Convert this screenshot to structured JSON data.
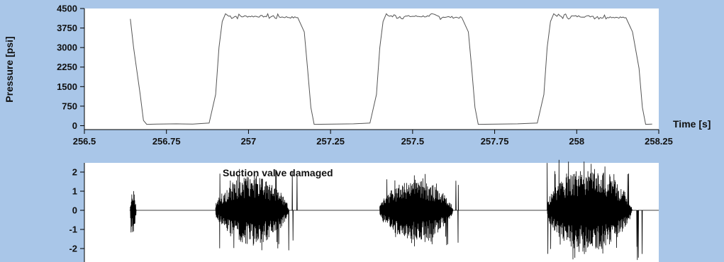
{
  "chart_data": [
    {
      "type": "line",
      "panel": "pressure",
      "ylabel": "Pressure [psi]",
      "xlabel": "Time [s]",
      "xlim": [
        256.5,
        258.25
      ],
      "ylim": [
        -150,
        4500
      ],
      "xticks": [
        256.5,
        256.75,
        257,
        257.25,
        257.5,
        257.75,
        258,
        258.25
      ],
      "xtick_labels": [
        "256.5",
        "256.75",
        "257",
        "257.25",
        "257.5",
        "257.75",
        "258",
        "258.25"
      ],
      "yticks": [
        0,
        750,
        1500,
        2250,
        3000,
        3750,
        4500
      ],
      "ytick_labels": [
        "0",
        "750",
        "1500",
        "2250",
        "3000",
        "3750",
        "4500"
      ],
      "grid": false,
      "series": [
        {
          "color": "#555555",
          "x": [
            256.64,
            256.65,
            256.67,
            256.68,
            256.69,
            256.72,
            256.78,
            256.83,
            256.88,
            256.9,
            256.91,
            256.92,
            256.93,
            256.94,
            257.05,
            257.15,
            257.17,
            257.18,
            257.19,
            257.2,
            257.26,
            257.32,
            257.37,
            257.39,
            257.4,
            257.41,
            257.42,
            257.43,
            257.55,
            257.65,
            257.67,
            257.68,
            257.69,
            257.7,
            257.76,
            257.82,
            257.88,
            257.9,
            257.91,
            257.92,
            257.93,
            257.94,
            258.05,
            258.15,
            258.17,
            258.19,
            258.2,
            258.21,
            258.23
          ],
          "y": [
            4100,
            3000,
            1200,
            200,
            50,
            60,
            70,
            60,
            100,
            1200,
            3000,
            4000,
            4300,
            4200,
            4200,
            4150,
            3600,
            2200,
            700,
            50,
            60,
            70,
            100,
            1200,
            3000,
            4000,
            4300,
            4200,
            4200,
            4150,
            3600,
            2200,
            700,
            50,
            60,
            70,
            100,
            1200,
            3000,
            4000,
            4300,
            4200,
            4200,
            4150,
            3600,
            2200,
            700,
            50,
            60
          ]
        }
      ]
    },
    {
      "type": "line",
      "panel": "vibration",
      "title": "Suction valve damaged",
      "ylim": [
        -2.6,
        2.6
      ],
      "yticks": [
        -2,
        -1,
        0,
        1,
        2
      ],
      "ytick_labels": [
        "-2",
        "-1",
        "0",
        "1",
        "2"
      ],
      "grid": false,
      "series": [
        {
          "color": "#000000",
          "x_start": 256.5,
          "x_end": 258.25,
          "baseline": 0,
          "bursts": [
            {
              "start": 256.64,
              "end": 256.66,
              "amplitude": 1.2,
              "density": 0.9
            },
            {
              "start": 256.9,
              "end": 257.15,
              "amplitude": 1.8,
              "density": 0.9
            },
            {
              "start": 257.4,
              "end": 257.65,
              "amplitude": 1.6,
              "density": 0.9
            },
            {
              "start": 257.91,
              "end": 258.2,
              "amplitude": 2.2,
              "density": 0.9
            }
          ]
        }
      ]
    }
  ]
}
